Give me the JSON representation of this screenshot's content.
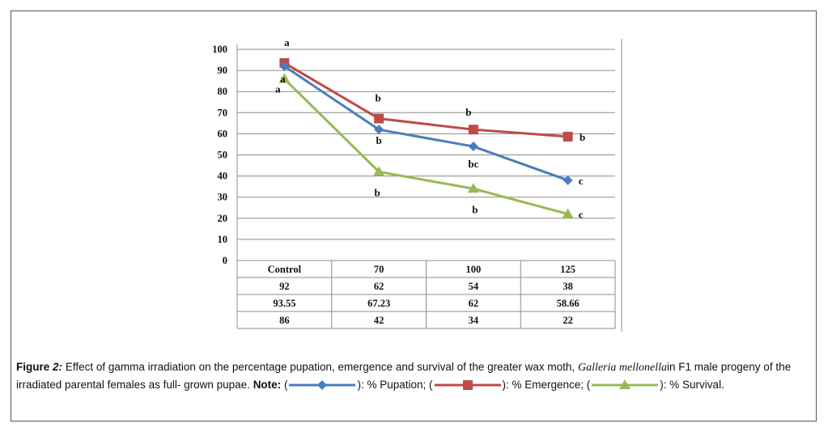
{
  "chart_data": {
    "type": "line",
    "categories": [
      "Control",
      "70",
      "100",
      "125"
    ],
    "ylim": [
      0,
      100
    ],
    "yticks": [
      "0",
      "10",
      "20",
      "30",
      "40",
      "50",
      "60",
      "70",
      "80",
      "90",
      "100"
    ],
    "series": [
      {
        "name": "% Pupation",
        "color": "#4a7ebb",
        "marker": "diamond",
        "values": [
          92,
          62,
          54,
          38
        ],
        "labels": [
          "92",
          "62",
          "54",
          "38"
        ],
        "sig": [
          "a",
          "b",
          "bc",
          "c"
        ]
      },
      {
        "name": "% Emergence",
        "color": "#be4b48",
        "marker": "square",
        "values": [
          93.55,
          67.23,
          62,
          58.66
        ],
        "labels": [
          "93.55",
          "67.23",
          "62",
          "58.66"
        ],
        "sig": [
          "a",
          "b",
          "b",
          "b"
        ]
      },
      {
        "name": "% Survival",
        "color": "#98b954",
        "marker": "triangle",
        "values": [
          86,
          42,
          34,
          22
        ],
        "labels": [
          "86",
          "42",
          "34",
          "22"
        ],
        "sig": [
          "a",
          "b",
          "b",
          "c"
        ]
      }
    ]
  },
  "caption": {
    "figure_label": "Figure",
    "figure_number": "2:",
    "text_1": "Effect of gamma irradiation on the percentage pupation, emergence and survival of the greater wax moth,",
    "species": "Galleria mellonella",
    "text_2": "in F1 male progeny of the irradiated parental females as full- grown pupae.",
    "note_label": "Note:",
    "open_paren_1": "(",
    "legend_1_text": "): % Pupation; (",
    "legend_2_text": "): % Emergence; (",
    "legend_3_text": "): % Survival."
  }
}
